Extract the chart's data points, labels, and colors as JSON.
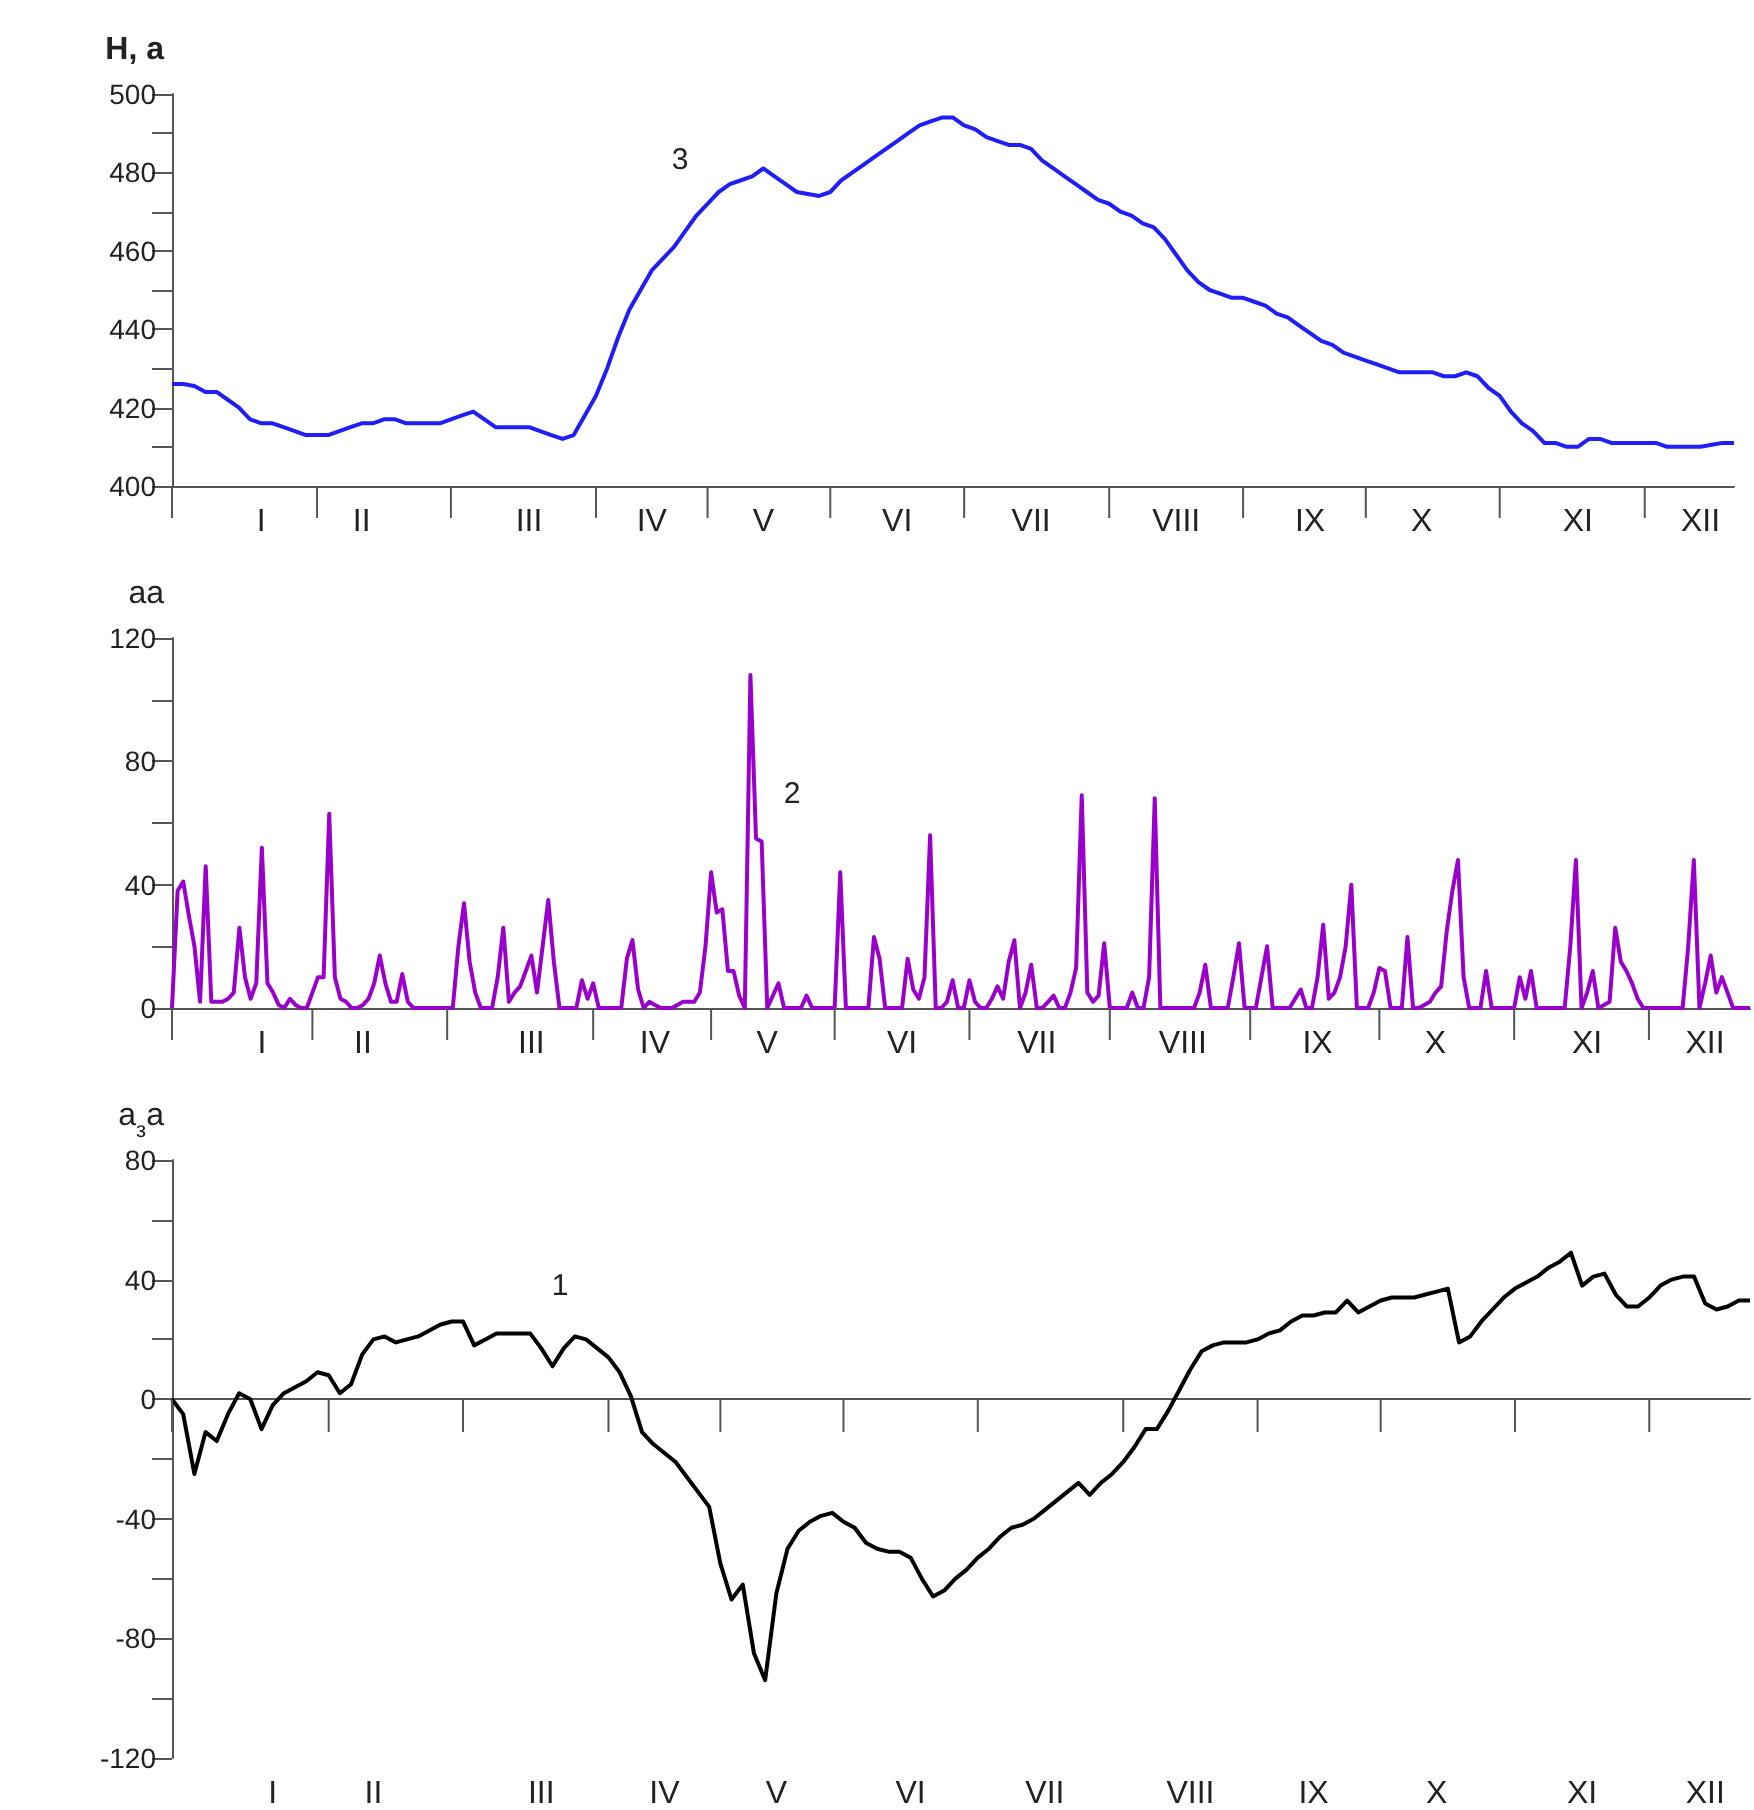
{
  "chart_data": [
    {
      "type": "line",
      "ylabel": "H, а",
      "annotations": [
        "3"
      ],
      "ylim": [
        400,
        500
      ],
      "yticks": [
        400,
        {
          "value": 410,
          "label": null
        },
        420,
        {
          "value": 430,
          "label": null
        },
        440,
        {
          "value": 450,
          "label": null
        },
        460,
        {
          "value": 470,
          "label": null
        },
        480,
        {
          "value": 490,
          "label": null
        },
        500
      ],
      "categories": [
        null,
        null,
        null,
        null,
        null,
        null,
        null,
        null,
        "I",
        null,
        null,
        null,
        null,
        null,
        null,
        null,
        null,
        "II",
        null,
        null,
        null,
        null,
        null,
        null,
        null,
        null,
        null,
        null,
        null,
        null,
        null,
        null,
        "III",
        null,
        null,
        null,
        null,
        null,
        null,
        null,
        null,
        null,
        null,
        "IV",
        null,
        null,
        null,
        null,
        null,
        null,
        null,
        null,
        null,
        "V",
        null,
        null,
        null,
        null,
        null,
        null,
        null,
        null,
        null,
        null,
        null,
        "VI",
        null,
        null,
        null,
        null,
        null,
        null,
        null,
        null,
        null,
        null,
        null,
        "VII",
        null,
        null,
        null,
        null,
        null,
        null,
        null,
        null,
        null,
        null,
        null,
        null,
        "VIII",
        null,
        null,
        null,
        null,
        null,
        null,
        null,
        null,
        null,
        null,
        null,
        "IX",
        null,
        null,
        null,
        null,
        null,
        null,
        null,
        null,
        null,
        "X",
        null,
        null,
        null,
        null,
        null,
        null,
        null,
        null,
        null,
        null,
        null,
        null,
        null,
        "XI",
        null,
        null,
        null,
        null,
        null,
        null,
        null,
        null,
        null,
        null,
        "XII",
        null,
        null,
        null
      ],
      "series": [
        {
          "color": "#1f1ff5",
          "values": [
            426,
            426,
            425.5,
            424,
            424,
            422,
            420,
            417,
            416,
            416,
            415,
            414,
            413,
            413,
            413,
            414,
            415,
            416,
            416,
            417,
            417,
            416,
            416,
            416,
            416,
            417,
            418,
            419,
            417,
            415,
            415,
            415,
            415,
            414,
            413,
            412,
            413,
            418,
            423,
            430,
            438,
            445,
            450,
            455,
            458,
            461,
            465,
            469,
            472,
            475,
            477,
            478,
            479,
            481,
            479,
            477,
            475,
            474.5,
            474,
            475,
            478,
            480,
            482,
            484,
            486,
            488,
            490,
            492,
            493,
            494,
            494,
            492,
            491,
            489,
            488,
            487,
            487,
            486,
            483,
            481,
            479,
            477,
            475,
            473,
            472,
            470,
            469,
            467,
            466,
            463,
            459,
            455,
            452,
            450,
            449,
            448,
            448,
            447,
            446,
            444,
            443,
            441,
            439,
            437,
            436,
            434,
            433,
            432,
            431,
            430,
            429,
            429,
            429,
            429,
            428,
            428,
            429,
            428,
            425,
            423,
            419,
            416,
            414,
            411,
            411,
            410,
            410,
            412,
            412,
            411,
            411,
            411,
            411,
            411,
            410,
            410,
            410,
            410,
            410.5,
            411,
            411
          ]
        }
      ]
    },
    {
      "type": "line",
      "ylabel": "аа",
      "annotations": [
        "2"
      ],
      "ylim": [
        0,
        120
      ],
      "yticks": [
        0,
        {
          "value": 20,
          "label": null
        },
        40,
        {
          "value": 60,
          "label": null
        },
        80,
        {
          "value": 100,
          "label": null
        },
        120
      ],
      "categories": [
        null,
        null,
        null,
        null,
        null,
        null,
        null,
        null,
        null,
        null,
        null,
        null,
        null,
        null,
        null,
        null,
        "I",
        null,
        null,
        null,
        null,
        null,
        null,
        null,
        null,
        null,
        null,
        null,
        null,
        null,
        null,
        null,
        null,
        null,
        "II",
        null,
        null,
        null,
        null,
        null,
        null,
        null,
        null,
        null,
        null,
        null,
        null,
        null,
        null,
        null,
        null,
        null,
        null,
        null,
        null,
        null,
        null,
        null,
        null,
        null,
        null,
        null,
        null,
        null,
        "III",
        null,
        null,
        null,
        null,
        null,
        null,
        null,
        null,
        null,
        null,
        null,
        null,
        null,
        null,
        null,
        null,
        null,
        null,
        null,
        null,
        null,
        "IV",
        null,
        null,
        null,
        null,
        null,
        null,
        null,
        null,
        null,
        null,
        null,
        null,
        null,
        null,
        null,
        null,
        null,
        null,
        null,
        "V",
        null,
        null,
        null,
        null,
        null,
        null,
        null,
        null,
        null,
        null,
        null,
        null,
        null,
        null,
        null,
        null,
        null,
        null,
        null,
        null,
        null,
        null,
        null,
        "VI",
        null,
        null,
        null,
        null,
        null,
        null,
        null,
        null,
        null,
        null,
        null,
        null,
        null,
        null,
        null,
        null,
        null,
        null,
        null,
        null,
        null,
        null,
        null,
        "VII",
        null,
        null,
        null,
        null,
        null,
        null,
        null,
        null,
        null,
        null,
        null,
        null,
        null,
        null,
        null,
        null,
        null,
        null,
        null,
        null,
        null,
        null,
        null,
        null,
        null,
        "VIII",
        null,
        null,
        null,
        null,
        null,
        null,
        null,
        null,
        null,
        null,
        null,
        null,
        null,
        null,
        null,
        null,
        null,
        null,
        null,
        null,
        null,
        null,
        null,
        "IX",
        null,
        null,
        null,
        null,
        null,
        null,
        null,
        null,
        null,
        null,
        null,
        null,
        null,
        null,
        null,
        null,
        null,
        null,
        null,
        null,
        "X",
        null,
        null,
        null,
        null,
        null,
        null,
        null,
        null,
        null,
        null,
        null,
        null,
        null,
        null,
        null,
        null,
        null,
        null,
        null,
        null,
        null,
        null,
        null,
        null,
        null,
        null,
        "XI",
        null,
        null,
        null,
        null,
        null,
        null,
        null,
        null,
        null,
        null,
        null,
        null,
        null,
        null,
        null,
        null,
        null,
        null,
        null,
        null,
        "XII",
        null,
        null,
        null,
        null,
        null,
        null,
        null,
        null
      ],
      "series": [
        {
          "color": "#9900cc",
          "values": [
            0,
            38,
            41,
            30,
            20,
            2,
            46,
            2,
            2,
            2,
            3,
            5,
            26,
            10,
            3,
            8,
            52,
            8,
            5,
            1,
            0,
            3,
            1,
            0,
            0,
            5,
            10,
            10,
            63,
            10,
            3,
            2,
            0,
            0,
            1,
            3,
            8,
            17,
            8,
            2,
            2,
            11,
            2,
            0,
            0,
            0,
            0,
            0,
            0,
            0,
            0,
            20,
            34,
            15,
            5,
            0,
            0,
            0,
            10,
            26,
            2,
            5,
            7,
            12,
            17,
            5,
            20,
            35,
            15,
            0,
            0,
            0,
            0,
            9,
            3,
            8,
            0,
            0,
            0,
            0,
            0,
            16,
            22,
            6,
            0,
            2,
            1,
            0,
            0,
            0,
            1,
            2,
            2,
            2,
            5,
            20,
            44,
            31,
            32,
            12,
            12,
            4,
            0,
            108,
            55,
            54,
            0,
            4,
            8,
            0,
            0,
            0,
            0,
            4,
            0,
            0,
            0,
            0,
            0,
            44,
            0,
            0,
            0,
            0,
            0,
            23,
            16,
            0,
            0,
            0,
            0,
            16,
            6,
            3,
            10,
            56,
            0,
            0,
            2,
            9,
            0,
            0,
            9,
            2,
            0,
            0,
            3,
            7,
            3,
            15,
            22,
            0,
            5,
            14,
            0,
            0,
            2,
            4,
            0,
            0,
            5,
            13,
            69,
            5,
            2,
            4,
            21,
            0,
            0,
            0,
            0,
            5,
            0,
            0,
            10,
            68,
            0,
            0,
            0,
            0,
            0,
            0,
            0,
            5,
            14,
            0,
            0,
            0,
            0,
            10,
            21,
            0,
            0,
            0,
            10,
            20,
            0,
            0,
            0,
            0,
            3,
            6,
            0,
            0,
            10,
            27,
            3,
            5,
            10,
            20,
            40,
            0,
            0,
            0,
            5,
            13,
            12,
            0,
            0,
            0,
            23,
            0,
            0,
            1,
            2,
            5,
            7,
            25,
            38,
            48,
            10,
            0,
            0,
            0,
            12,
            0,
            0,
            0,
            0,
            0,
            10,
            3,
            12,
            0,
            0,
            0,
            0,
            0,
            0,
            20,
            48,
            0,
            5,
            12,
            0,
            1,
            2,
            26,
            15,
            12,
            8,
            3,
            0,
            0,
            0,
            0,
            0,
            0,
            0,
            0,
            20,
            48,
            0,
            8,
            17,
            5,
            10,
            5,
            0,
            0,
            0,
            0
          ]
        }
      ]
    },
    {
      "type": "line",
      "ylabel": "а$_{з}$а",
      "annotations": [
        "1"
      ],
      "ylim": [
        -120,
        80
      ],
      "yticks": [
        -120,
        {
          "value": -100,
          "label": null
        },
        -80,
        {
          "value": -60,
          "label": null
        },
        -40,
        {
          "value": -20,
          "label": null
        },
        0,
        {
          "value": 20,
          "label": null
        },
        40,
        {
          "value": 60,
          "label": null
        },
        80
      ],
      "categories": [
        null,
        null,
        null,
        null,
        null,
        null,
        null,
        null,
        null,
        "I",
        null,
        null,
        null,
        null,
        null,
        null,
        null,
        null,
        "II",
        null,
        null,
        null,
        null,
        null,
        null,
        null,
        null,
        null,
        null,
        null,
        null,
        null,
        null,
        "III",
        null,
        null,
        null,
        null,
        null,
        null,
        null,
        null,
        null,
        null,
        "IV",
        null,
        null,
        null,
        null,
        null,
        null,
        null,
        null,
        null,
        "V",
        null,
        null,
        null,
        null,
        null,
        null,
        null,
        null,
        null,
        null,
        null,
        "VI",
        null,
        null,
        null,
        null,
        null,
        null,
        null,
        null,
        null,
        null,
        null,
        "VII",
        null,
        null,
        null,
        null,
        null,
        null,
        null,
        null,
        null,
        null,
        null,
        null,
        "VIII",
        null,
        null,
        null,
        null,
        null,
        null,
        null,
        null,
        null,
        null,
        "IX",
        null,
        null,
        null,
        null,
        null,
        null,
        null,
        null,
        null,
        null,
        "X",
        null,
        null,
        null,
        null,
        null,
        null,
        null,
        null,
        null,
        null,
        null,
        null,
        "XI",
        null,
        null,
        null,
        null,
        null,
        null,
        null,
        null,
        null,
        null,
        "XII",
        null,
        null,
        null,
        null
      ],
      "series": [
        {
          "color": "#000000",
          "values": [
            0,
            -5,
            -25,
            -11,
            -14,
            -5,
            2,
            0,
            -10,
            -2,
            2,
            4,
            6,
            9,
            8,
            2,
            5,
            15,
            20,
            21,
            19,
            20,
            21,
            23,
            25,
            26,
            26,
            18,
            20,
            22,
            22,
            22,
            22,
            17,
            11,
            17,
            21,
            20,
            17,
            14,
            9,
            1,
            -11,
            -15,
            -18,
            -21,
            -26,
            -31,
            -36,
            -55,
            -67,
            -62,
            -85,
            -94,
            -65,
            -50,
            -44,
            -41,
            -39,
            -38,
            -41,
            -43,
            -48,
            -50,
            -51,
            -51,
            -53,
            -60,
            -66,
            -64,
            -60,
            -57,
            -53,
            -50,
            -46,
            -43,
            -42,
            -40,
            -37,
            -34,
            -31,
            -28,
            -32,
            -28,
            -25,
            -21,
            -16,
            -10,
            -10,
            -4,
            3,
            10,
            16,
            18,
            19,
            19,
            19,
            20,
            22,
            23,
            26,
            28,
            28,
            29,
            29,
            33,
            29,
            31,
            33,
            34,
            34,
            34,
            35,
            36,
            37,
            19,
            21,
            26,
            30,
            34,
            37,
            39,
            41,
            44,
            46,
            49,
            38,
            41,
            42,
            35,
            31,
            31,
            34,
            38,
            40,
            41,
            41,
            32,
            30,
            31,
            33,
            33
          ]
        }
      ]
    }
  ]
}
